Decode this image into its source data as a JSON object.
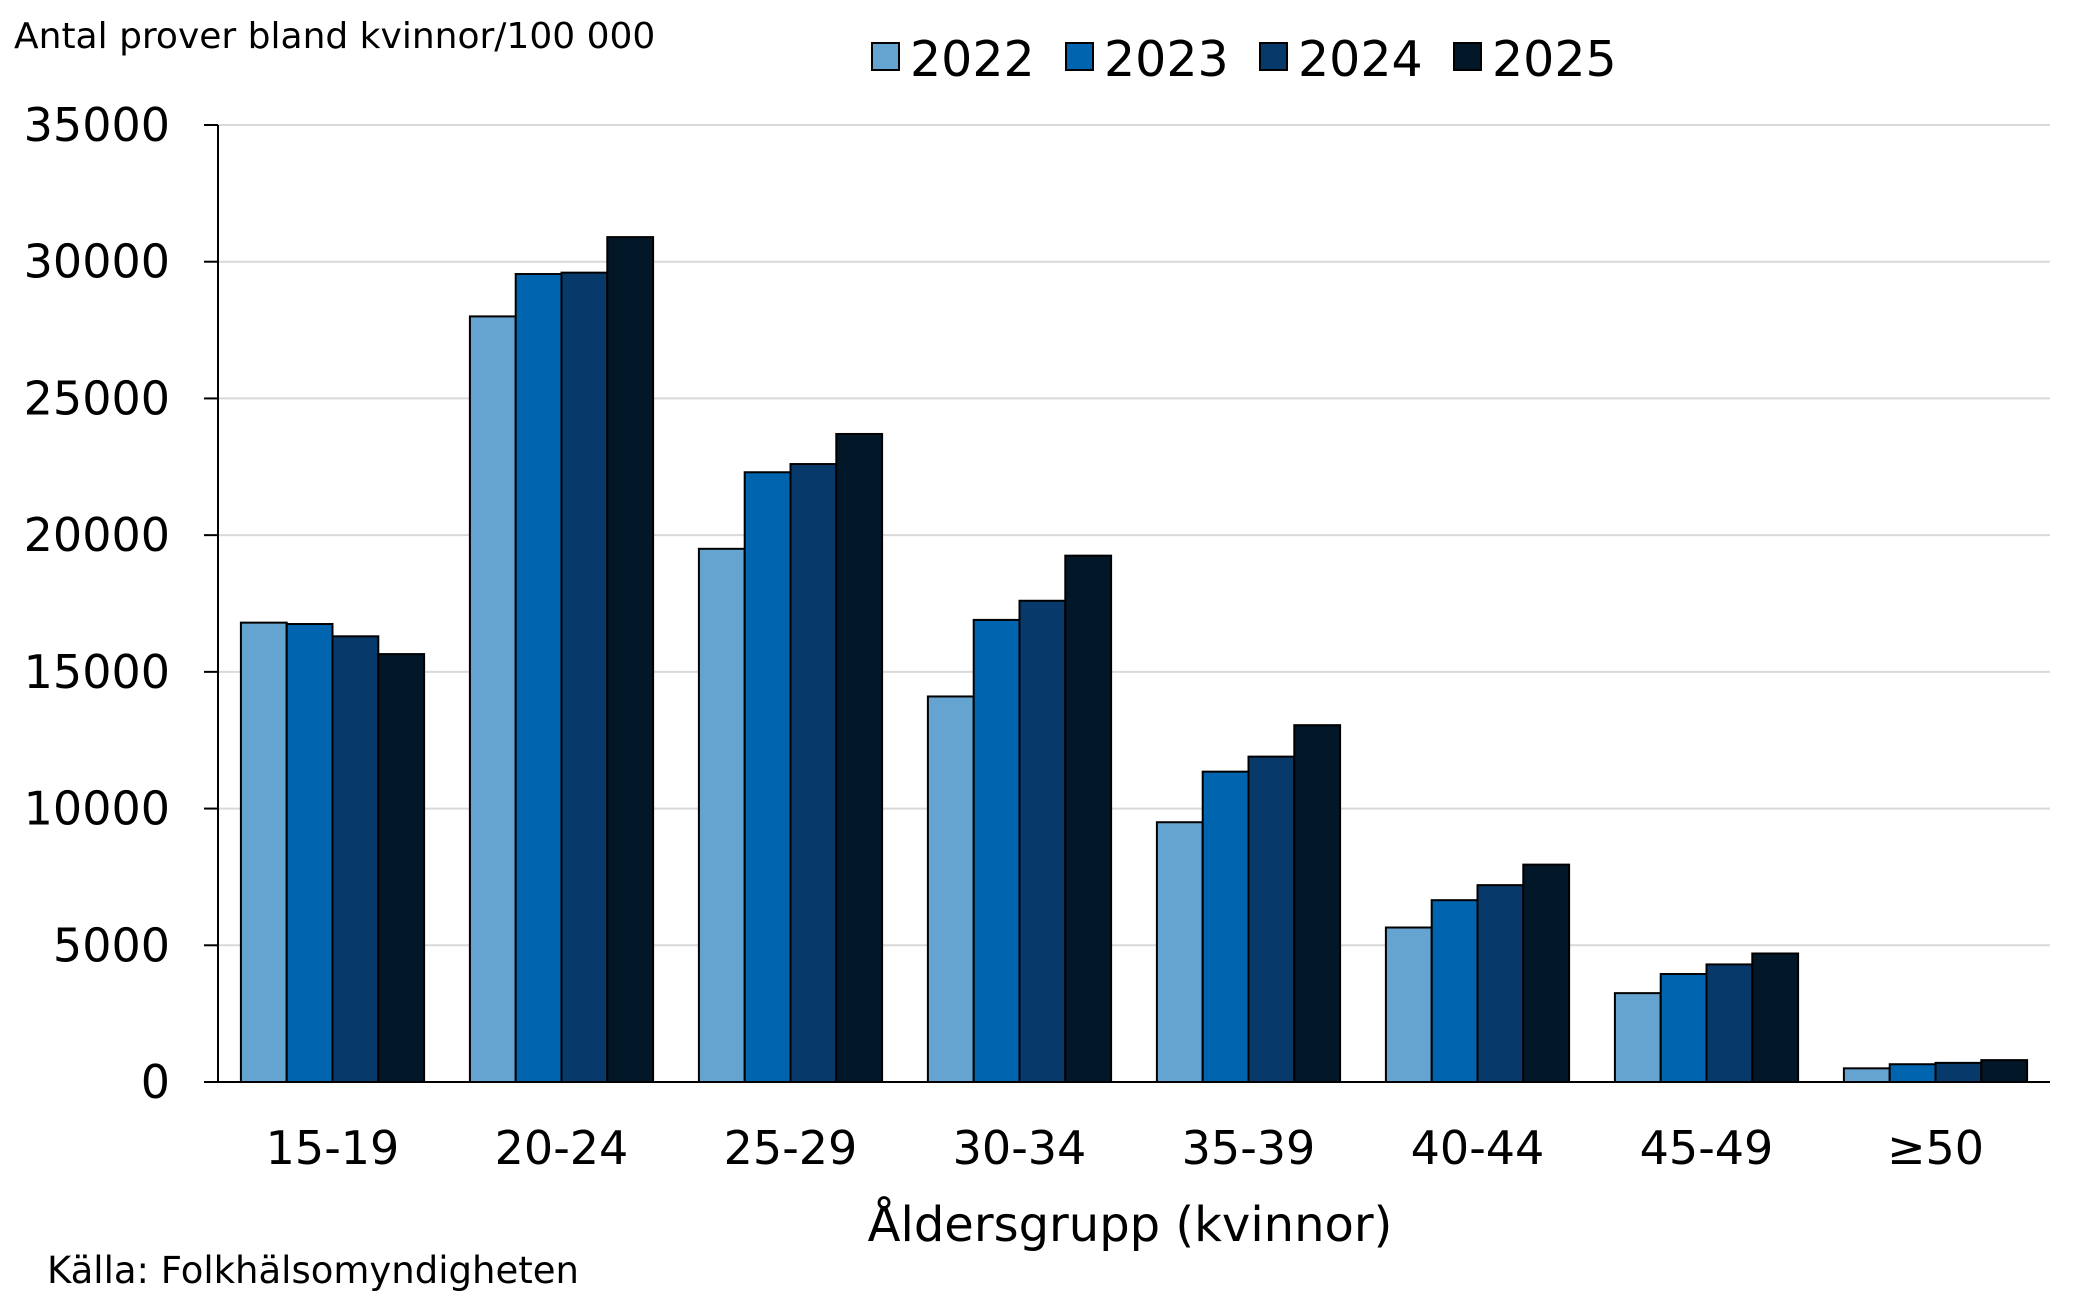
{
  "chart_data": {
    "type": "bar",
    "ylabel": "Antal prover bland kvinnor/100 000",
    "xlabel": "Åldersgrupp (kvinnor)",
    "source": "Källa: Folkhälsomyndigheten",
    "categories": [
      "15-19",
      "20-24",
      "25-29",
      "30-34",
      "35-39",
      "40-44",
      "45-49",
      "≥50"
    ],
    "series": [
      {
        "name": "2022",
        "color": "#65a4d0",
        "values": [
          16800,
          28000,
          19500,
          14100,
          9500,
          5650,
          3250,
          500
        ]
      },
      {
        "name": "2023",
        "color": "#0064ae",
        "values": [
          16750,
          29550,
          22300,
          16900,
          11350,
          6650,
          3950,
          650
        ]
      },
      {
        "name": "2024",
        "color": "#073a6b",
        "values": [
          16300,
          29600,
          22600,
          17600,
          11900,
          7200,
          4300,
          700
        ]
      },
      {
        "name": "2025",
        "color": "#021728",
        "values": [
          15650,
          30900,
          23700,
          19250,
          13050,
          7950,
          4700,
          800
        ]
      }
    ],
    "ylim": [
      0,
      35000
    ],
    "yticks": [
      "0",
      "5000",
      "10000",
      "15000",
      "20000",
      "25000",
      "30000",
      "35000"
    ],
    "grid": true,
    "legend_position": "top"
  }
}
